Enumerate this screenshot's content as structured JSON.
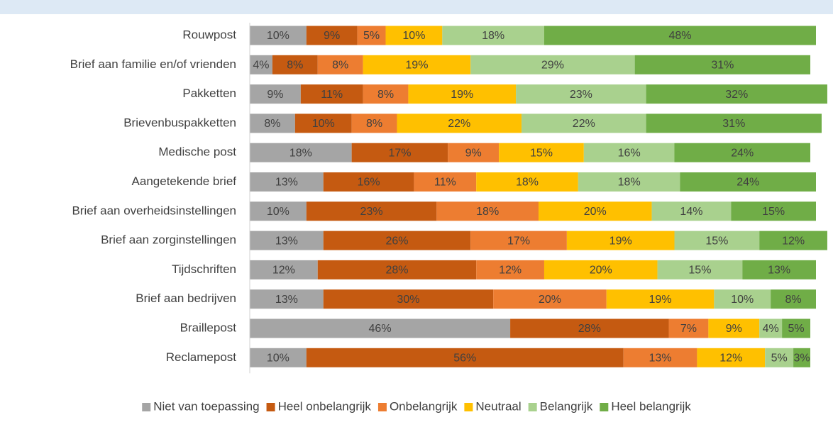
{
  "chart_data": {
    "type": "stacked-bar-horizontal",
    "categories": [
      "Rouwpost",
      "Brief aan familie en/of vrienden",
      "Pakketten",
      "Brievenbuspakketten",
      "Medische post",
      "Aangetekende brief",
      "Brief aan overheidsinstellingen",
      "Brief aan zorginstellingen",
      "Tijdschriften",
      "Brief aan bedrijven",
      "Braillepost",
      "Reclamepost"
    ],
    "series": [
      {
        "name": "Niet van toepassing",
        "color": "#a5a5a5",
        "values": [
          10,
          4,
          9,
          8,
          18,
          13,
          10,
          13,
          12,
          13,
          46,
          10
        ],
        "value_labels": [
          "10%",
          "4%",
          "9%",
          "8%",
          "18%",
          "13%",
          "10%",
          "13%",
          "12%",
          "13%",
          "46%",
          "10%"
        ]
      },
      {
        "name": "Heel onbelangrijk",
        "color": "#c55a11",
        "values": [
          9,
          8,
          11,
          10,
          17,
          16,
          23,
          26,
          28,
          30,
          28,
          56
        ],
        "value_labels": [
          "9%",
          "8%",
          "11%",
          "10%",
          "17%",
          "16%",
          "23%",
          "26%",
          "28%",
          "30%",
          "28%",
          "56%"
        ]
      },
      {
        "name": "Onbelangrijk",
        "color": "#ed7d31",
        "values": [
          5,
          8,
          8,
          8,
          9,
          11,
          18,
          17,
          12,
          20,
          7,
          13
        ],
        "value_labels": [
          "5%",
          "8%",
          "8%",
          "8%",
          "9%",
          "11%",
          "18%",
          "17%",
          "12%",
          "20%",
          "7%",
          "13%"
        ]
      },
      {
        "name": "Neutraal",
        "color": "#ffc000",
        "values": [
          10,
          19,
          19,
          22,
          15,
          18,
          20,
          19,
          20,
          19,
          9,
          12
        ],
        "value_labels": [
          "10%",
          "19%",
          "19%",
          "22%",
          "15%",
          "18%",
          "20%",
          "19%",
          "20%",
          "19%",
          "9%",
          "12%"
        ]
      },
      {
        "name": "Belangrijk",
        "color": "#a9d18e",
        "values": [
          18,
          29,
          23,
          22,
          16,
          18,
          14,
          15,
          15,
          10,
          4,
          5
        ],
        "value_labels": [
          "18%",
          "29%",
          "23%",
          "22%",
          "16%",
          "18%",
          "14%",
          "15%",
          "15%",
          "10%",
          "4%",
          "5%"
        ]
      },
      {
        "name": "Heel belangrijk",
        "color": "#70ad47",
        "values": [
          48,
          31,
          32,
          31,
          24,
          24,
          15,
          12,
          13,
          8,
          5,
          3
        ],
        "value_labels": [
          "48%",
          "31%",
          "32%",
          "31%",
          "24%",
          "24%",
          "15%",
          "12%",
          "13%",
          "8%",
          "5%",
          "3%"
        ]
      }
    ],
    "xlim": [
      0,
      100
    ],
    "legend": "bottom"
  }
}
